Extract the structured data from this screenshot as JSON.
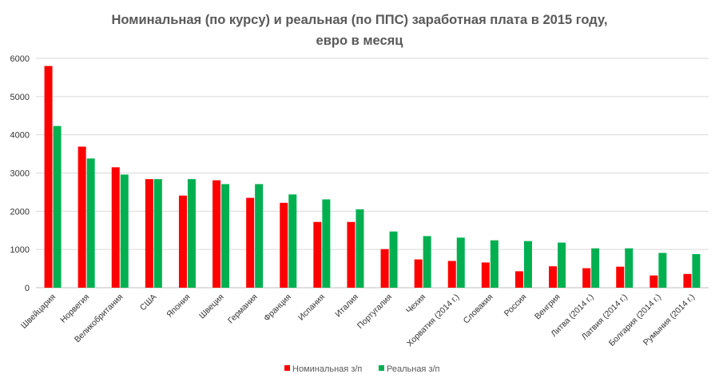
{
  "chart_data": {
    "type": "bar",
    "title_line1": "Номинальная (по курсу) и реальная (по ППС) заработная плата в 2015 году,",
    "title_line2": "евро в месяц",
    "categories": [
      "Швейцария",
      "Норвегия",
      "Великобритания",
      "США",
      "Япония",
      "Швеция",
      "Германия",
      "Франция",
      "Испания",
      "Италия",
      "Португалия",
      "Чехия",
      "Хорватия (2014 г.)",
      "Словакия",
      "Россия",
      "Венгрия",
      "Литва (2014 г.)",
      "Латвия (2014 г.)",
      "Болгария (2014 г.)",
      "Румыния (2014 г.)"
    ],
    "series": [
      {
        "name": "Номинальная з/п",
        "color": "#ff0000",
        "values": [
          5800,
          3690,
          3150,
          2840,
          2410,
          2810,
          2350,
          2220,
          1720,
          1720,
          1010,
          740,
          700,
          660,
          430,
          560,
          510,
          550,
          320,
          360
        ]
      },
      {
        "name": "Реальная з/п",
        "color": "#00b050",
        "values": [
          4230,
          3380,
          2960,
          2840,
          2840,
          2710,
          2710,
          2440,
          2310,
          2050,
          1470,
          1350,
          1310,
          1240,
          1220,
          1180,
          1030,
          1030,
          910,
          880
        ]
      }
    ],
    "ylim": [
      0,
      6000
    ],
    "yticks": [
      0,
      1000,
      2000,
      3000,
      4000,
      5000,
      6000
    ],
    "grid": true,
    "legend_position": "bottom"
  }
}
